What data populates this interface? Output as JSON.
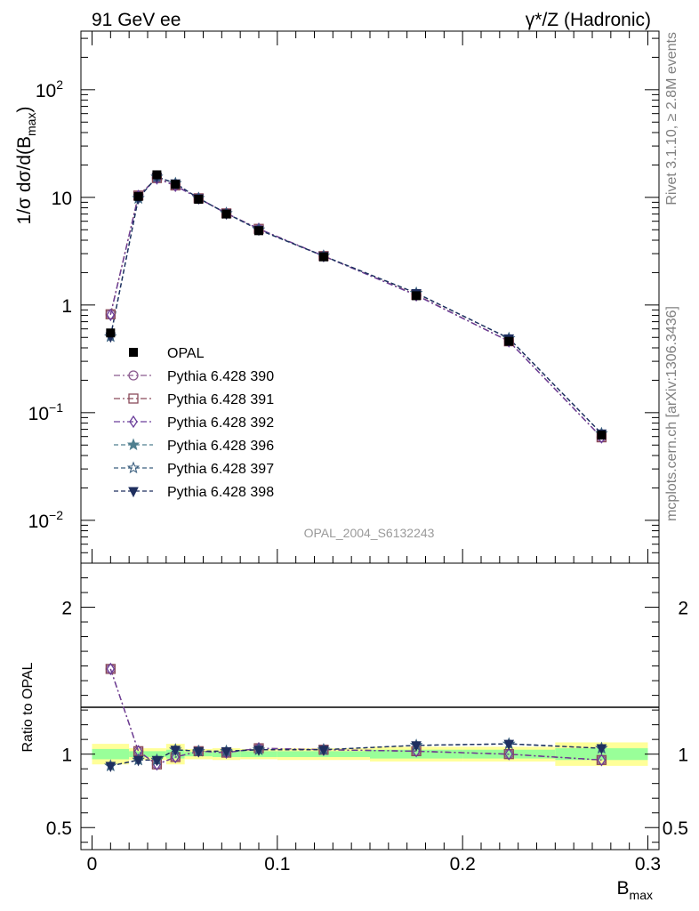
{
  "header": {
    "left_title": "91 GeV ee",
    "right_title": "γ*/Z (Hadronic)"
  },
  "side": {
    "rivet": "Rivet 3.1.10, ≥ 2.8M events",
    "mcplots": "mcplots.cern.ch [arXiv:1306.3436]"
  },
  "analysis_id": "OPAL_2004_S6132243",
  "colors": {
    "data": "#000000",
    "p390": "#8b5b8f",
    "p391": "#8a4a5a",
    "p392": "#6a3d9a",
    "p396": "#4f7f8f",
    "p397": "#3b5f7f",
    "p398": "#1f2f5f",
    "band_inner": "#99ff99",
    "band_outer": "#ffff99"
  },
  "chart_data": [
    {
      "type": "line",
      "panel": "main",
      "ylabel": "1/σ dσ/d(B_max)",
      "ylabel_main": "1/σ dσ/d(B",
      "ylabel_sub": "max",
      "ylabel_close": ")",
      "yscale": "log",
      "ylim": [
        0.004,
        350
      ],
      "xlim": [
        -0.006,
        0.306
      ],
      "ytick_labels": [
        {
          "value": 100,
          "base": "10",
          "exp": "2"
        },
        {
          "value": 10,
          "base": "10",
          "exp": ""
        },
        {
          "value": 1,
          "base": "1",
          "exp": ""
        },
        {
          "value": 0.1,
          "base": "10",
          "exp": "−1"
        },
        {
          "value": 0.01,
          "base": "10",
          "exp": "−2"
        }
      ],
      "x": [
        0.01,
        0.025,
        0.035,
        0.045,
        0.0575,
        0.0725,
        0.09,
        0.125,
        0.175,
        0.225,
        0.275
      ],
      "data": {
        "name": "OPAL",
        "values": [
          0.55,
          10.2,
          16.2,
          13.2,
          9.6,
          7.0,
          4.9,
          2.8,
          1.22,
          0.46,
          0.062
        ]
      },
      "series": [
        {
          "name": "Pythia 6.428 390",
          "marker": "circle-open",
          "dash": "dashdot",
          "values": [
            0.82,
            10.4,
            15.1,
            12.9,
            9.8,
            7.1,
            5.1,
            2.85,
            1.24,
            0.46,
            0.059
          ]
        },
        {
          "name": "Pythia 6.428 391",
          "marker": "square-open",
          "dash": "dashdot",
          "values": [
            0.82,
            10.4,
            15.1,
            12.9,
            9.8,
            7.1,
            5.1,
            2.85,
            1.24,
            0.46,
            0.059
          ]
        },
        {
          "name": "Pythia 6.428 392",
          "marker": "diamond-open",
          "dash": "dashdot",
          "values": [
            0.81,
            10.3,
            15.0,
            12.8,
            9.8,
            7.1,
            5.1,
            2.85,
            1.23,
            0.46,
            0.059
          ]
        },
        {
          "name": "Pythia 6.428 396",
          "marker": "star-filled",
          "dash": "dash",
          "values": [
            0.51,
            9.8,
            15.5,
            13.5,
            9.8,
            7.1,
            5.0,
            2.85,
            1.29,
            0.49,
            0.064
          ]
        },
        {
          "name": "Pythia 6.428 397",
          "marker": "star-open",
          "dash": "dash",
          "values": [
            0.51,
            9.8,
            15.5,
            13.5,
            9.8,
            7.1,
            5.0,
            2.85,
            1.29,
            0.49,
            0.064
          ]
        },
        {
          "name": "Pythia 6.428 398",
          "marker": "triangle-down-filled",
          "dash": "dash",
          "values": [
            0.51,
            9.8,
            15.5,
            13.5,
            9.8,
            7.1,
            5.0,
            2.85,
            1.29,
            0.49,
            0.064
          ]
        }
      ]
    },
    {
      "type": "line",
      "panel": "ratio",
      "ylabel": "Ratio to OPAL",
      "xlabel": "B_max",
      "xlabel_main": "B",
      "xlabel_sub": "max",
      "yscale": "linear",
      "ylim": [
        0.35,
        2.3
      ],
      "xlim": [
        -0.006,
        0.306
      ],
      "yticks": [
        0.5,
        1,
        2
      ],
      "ytick_labels": [
        "0.5",
        "1",
        "2"
      ],
      "xticks": [
        0,
        0.1,
        0.2,
        0.3
      ],
      "xtick_labels": [
        "0",
        "0.1",
        "0.2",
        "0.3"
      ],
      "x": [
        0.01,
        0.025,
        0.035,
        0.045,
        0.0575,
        0.0725,
        0.09,
        0.125,
        0.175,
        0.225,
        0.275
      ],
      "bands": [
        {
          "xmin": 0.0,
          "xmax": 0.02,
          "outer": 0.07,
          "inner": 0.035
        },
        {
          "xmin": 0.02,
          "xmax": 0.03,
          "outer": 0.04,
          "inner": 0.02
        },
        {
          "xmin": 0.03,
          "xmax": 0.04,
          "outer": 0.04,
          "inner": 0.02
        },
        {
          "xmin": 0.04,
          "xmax": 0.05,
          "outer": 0.07,
          "inner": 0.03
        },
        {
          "xmin": 0.05,
          "xmax": 0.065,
          "outer": 0.035,
          "inner": 0.015
        },
        {
          "xmin": 0.065,
          "xmax": 0.08,
          "outer": 0.04,
          "inner": 0.02
        },
        {
          "xmin": 0.08,
          "xmax": 0.1,
          "outer": 0.035,
          "inner": 0.02
        },
        {
          "xmin": 0.1,
          "xmax": 0.15,
          "outer": 0.04,
          "inner": 0.02
        },
        {
          "xmin": 0.15,
          "xmax": 0.2,
          "outer": 0.05,
          "inner": 0.03
        },
        {
          "xmin": 0.2,
          "xmax": 0.25,
          "outer": 0.05,
          "inner": 0.03
        },
        {
          "xmin": 0.25,
          "xmax": 0.3,
          "outer": 0.08,
          "inner": 0.04
        }
      ],
      "series": [
        {
          "name": "Pythia 6.428 390",
          "marker": "circle-open",
          "dash": "dashdot",
          "values": [
            1.58,
            1.02,
            0.93,
            0.98,
            1.02,
            1.01,
            1.04,
            1.03,
            1.02,
            1.0,
            0.96
          ]
        },
        {
          "name": "Pythia 6.428 391",
          "marker": "square-open",
          "dash": "dashdot",
          "values": [
            1.58,
            1.02,
            0.93,
            0.98,
            1.02,
            1.01,
            1.04,
            1.03,
            1.02,
            1.0,
            0.96
          ]
        },
        {
          "name": "Pythia 6.428 392",
          "marker": "diamond-open",
          "dash": "dashdot",
          "values": [
            1.58,
            1.02,
            0.93,
            0.98,
            1.02,
            1.01,
            1.04,
            1.03,
            1.02,
            1.0,
            0.96
          ]
        },
        {
          "name": "Pythia 6.428 396",
          "marker": "star-filled",
          "dash": "dash",
          "values": [
            0.92,
            0.96,
            0.96,
            1.03,
            1.02,
            1.02,
            1.03,
            1.03,
            1.06,
            1.07,
            1.04
          ]
        },
        {
          "name": "Pythia 6.428 397",
          "marker": "star-open",
          "dash": "dash",
          "values": [
            0.92,
            0.96,
            0.96,
            1.03,
            1.02,
            1.02,
            1.03,
            1.03,
            1.06,
            1.07,
            1.04
          ]
        },
        {
          "name": "Pythia 6.428 398",
          "marker": "triangle-down-filled",
          "dash": "dash",
          "values": [
            0.92,
            0.96,
            0.96,
            1.03,
            1.02,
            1.02,
            1.03,
            1.03,
            1.06,
            1.07,
            1.04
          ]
        }
      ]
    }
  ]
}
